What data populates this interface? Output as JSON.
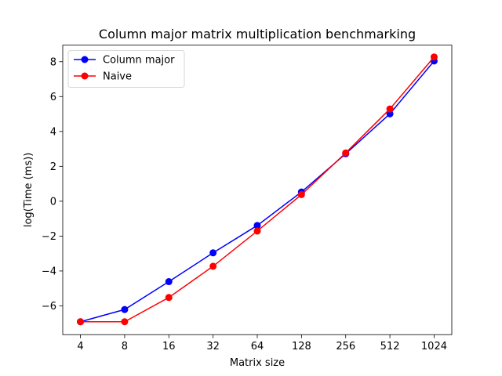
{
  "chart_data": {
    "type": "line",
    "title": "Column major matrix multiplication benchmarking",
    "xlabel": "Matrix size",
    "ylabel": "log(Time (ms))",
    "categories": [
      "4",
      "8",
      "16",
      "32",
      "64",
      "128",
      "256",
      "512",
      "1024"
    ],
    "yticks": [
      "−6",
      "−4",
      "−2",
      "0",
      "2",
      "4",
      "6",
      "8"
    ],
    "ylim": [
      -7.65,
      8.95
    ],
    "grid": false,
    "legend_position": "top-left",
    "series": [
      {
        "name": "Column major",
        "color": "#0000ff",
        "marker": "circle",
        "values": [
          -6.91,
          -6.21,
          -4.61,
          -2.96,
          -1.39,
          0.53,
          2.72,
          5.01,
          8.04
        ]
      },
      {
        "name": "Naive",
        "color": "#ff0000",
        "marker": "circle",
        "values": [
          -6.91,
          -6.91,
          -5.52,
          -3.73,
          -1.71,
          0.38,
          2.77,
          5.29,
          8.27
        ]
      }
    ]
  }
}
